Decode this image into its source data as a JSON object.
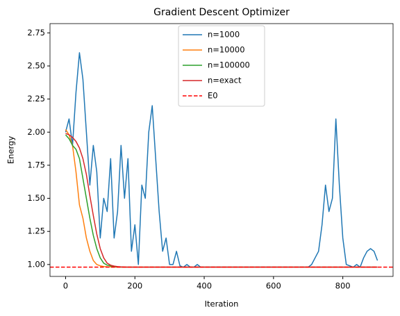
{
  "chart_data": {
    "type": "line",
    "title": "Gradient Descent Optimizer",
    "x_label": "Iteration",
    "y_label": "Energy",
    "xlim": [
      -45,
      945
    ],
    "ylim": [
      0.91,
      2.82
    ],
    "xticks": [
      0,
      200,
      400,
      600,
      800
    ],
    "yticks": [
      {
        "value": 1.0,
        "label": "1.00"
      },
      {
        "value": 1.25,
        "label": "1.25"
      },
      {
        "value": 1.5,
        "label": "1.50"
      },
      {
        "value": 1.75,
        "label": "1.75"
      },
      {
        "value": 2.0,
        "label": "2.00"
      },
      {
        "value": 2.25,
        "label": "2.25"
      },
      {
        "value": 2.5,
        "label": "2.50"
      },
      {
        "value": 2.75,
        "label": "2.75"
      }
    ],
    "grid": false,
    "legend": "upper center",
    "series": [
      {
        "name": "n=1000",
        "color": "#1f77b4",
        "x": [
          0,
          10,
          20,
          30,
          40,
          50,
          60,
          70,
          80,
          90,
          100,
          110,
          120,
          130,
          140,
          150,
          160,
          170,
          180,
          190,
          200,
          210,
          220,
          230,
          240,
          250,
          260,
          270,
          280,
          290,
          300,
          310,
          320,
          330,
          340,
          350,
          360,
          370,
          380,
          390,
          400,
          410,
          420,
          430,
          440,
          450,
          460,
          470,
          480,
          490,
          500,
          510,
          520,
          530,
          540,
          550,
          560,
          570,
          580,
          590,
          600,
          610,
          620,
          630,
          640,
          650,
          660,
          670,
          680,
          690,
          700,
          710,
          720,
          730,
          740,
          750,
          760,
          770,
          780,
          790,
          800,
          810,
          820,
          830,
          840,
          850,
          860,
          870,
          880,
          890,
          900
        ],
        "values": [
          2.0,
          2.1,
          1.9,
          2.3,
          2.6,
          2.4,
          2.0,
          1.6,
          1.9,
          1.7,
          1.2,
          1.5,
          1.4,
          1.8,
          1.2,
          1.4,
          1.9,
          1.5,
          1.8,
          1.1,
          1.3,
          1.0,
          1.6,
          1.5,
          2.0,
          2.2,
          1.8,
          1.4,
          1.1,
          1.2,
          1.0,
          1.0,
          1.1,
          0.99,
          0.98,
          1.0,
          0.98,
          0.98,
          1.0,
          0.98,
          0.98,
          0.98,
          0.98,
          0.98,
          0.98,
          0.98,
          0.98,
          0.98,
          0.98,
          0.98,
          0.98,
          0.98,
          0.98,
          0.98,
          0.98,
          0.98,
          0.98,
          0.98,
          0.98,
          0.98,
          0.98,
          0.98,
          0.98,
          0.98,
          0.98,
          0.98,
          0.98,
          0.98,
          0.98,
          0.98,
          0.98,
          1.0,
          1.05,
          1.1,
          1.3,
          1.6,
          1.4,
          1.5,
          2.1,
          1.6,
          1.2,
          1.0,
          0.99,
          0.98,
          1.0,
          0.98,
          1.05,
          1.1,
          1.12,
          1.1,
          1.03
        ]
      },
      {
        "name": "n=10000",
        "color": "#ff7f0e",
        "x": [
          0,
          10,
          20,
          30,
          40,
          50,
          60,
          70,
          80,
          90,
          100,
          110,
          120,
          130,
          140,
          150,
          160,
          170,
          180,
          190,
          200,
          300,
          400,
          500,
          600,
          700,
          800,
          900
        ],
        "values": [
          2.02,
          1.98,
          1.9,
          1.7,
          1.45,
          1.35,
          1.2,
          1.1,
          1.03,
          1.0,
          0.99,
          0.985,
          0.983,
          0.982,
          0.981,
          0.98,
          0.98,
          0.98,
          0.98,
          0.98,
          0.98,
          0.98,
          0.98,
          0.98,
          0.98,
          0.98,
          0.98,
          0.98
        ]
      },
      {
        "name": "n=100000",
        "color": "#2ca02c",
        "x": [
          0,
          10,
          20,
          30,
          40,
          50,
          60,
          70,
          80,
          90,
          100,
          110,
          120,
          130,
          140,
          150,
          160,
          170,
          180,
          190,
          200,
          300,
          400,
          500,
          600,
          700,
          800,
          900
        ],
        "values": [
          1.98,
          1.95,
          1.9,
          1.87,
          1.8,
          1.65,
          1.5,
          1.35,
          1.22,
          1.12,
          1.05,
          1.01,
          0.995,
          0.99,
          0.985,
          0.982,
          0.981,
          0.98,
          0.98,
          0.98,
          0.98,
          0.98,
          0.98,
          0.98,
          0.98,
          0.98,
          0.98,
          0.98
        ]
      },
      {
        "name": "n=exact",
        "color": "#d62728",
        "x": [
          0,
          10,
          20,
          30,
          40,
          50,
          60,
          70,
          80,
          90,
          100,
          110,
          120,
          130,
          140,
          150,
          160,
          170,
          180,
          190,
          200,
          300,
          400,
          500,
          600,
          700,
          800,
          900
        ],
        "values": [
          1.99,
          1.98,
          1.96,
          1.93,
          1.88,
          1.8,
          1.68,
          1.52,
          1.37,
          1.23,
          1.12,
          1.05,
          1.01,
          0.995,
          0.988,
          0.984,
          0.982,
          0.981,
          0.98,
          0.98,
          0.98,
          0.98,
          0.98,
          0.98,
          0.98,
          0.98,
          0.98,
          0.98
        ]
      },
      {
        "name": "E0",
        "color": "#ff0000",
        "dashed": true,
        "hline": true,
        "values": [
          0.98
        ]
      }
    ]
  }
}
